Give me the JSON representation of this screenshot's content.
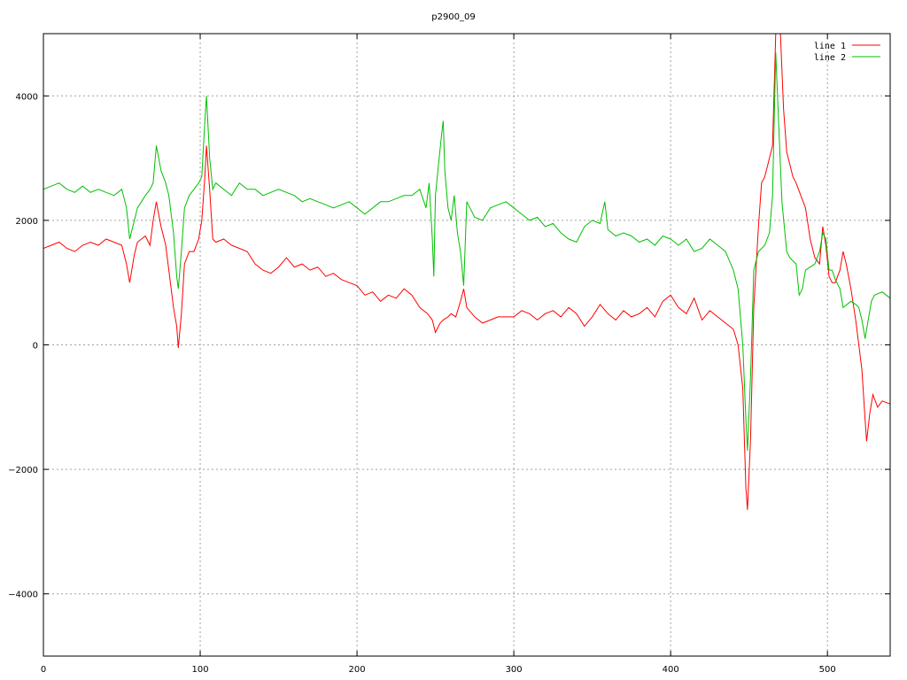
{
  "chart_data": {
    "type": "line",
    "title": "p2900_09",
    "xlim": [
      0,
      540
    ],
    "ylim": [
      -5000,
      5000
    ],
    "x_ticks": [
      0,
      100,
      200,
      300,
      400,
      500
    ],
    "y_ticks": [
      -4000,
      -2000,
      0,
      2000,
      4000
    ],
    "y_tick_labels": [
      "−4000",
      "−2000",
      "0",
      "2000",
      "4000"
    ],
    "grid": true,
    "legend_position": "top-right",
    "series": [
      {
        "name": "line 1",
        "color": "#ff0000",
        "points": [
          [
            0,
            1550
          ],
          [
            5,
            1600
          ],
          [
            10,
            1650
          ],
          [
            15,
            1550
          ],
          [
            20,
            1500
          ],
          [
            25,
            1600
          ],
          [
            30,
            1650
          ],
          [
            35,
            1600
          ],
          [
            40,
            1700
          ],
          [
            45,
            1650
          ],
          [
            50,
            1600
          ],
          [
            53,
            1300
          ],
          [
            55,
            1000
          ],
          [
            58,
            1450
          ],
          [
            60,
            1650
          ],
          [
            65,
            1750
          ],
          [
            68,
            1600
          ],
          [
            70,
            2000
          ],
          [
            72,
            2300
          ],
          [
            75,
            1900
          ],
          [
            78,
            1600
          ],
          [
            80,
            1200
          ],
          [
            83,
            600
          ],
          [
            85,
            300
          ],
          [
            86,
            -50
          ],
          [
            88,
            500
          ],
          [
            90,
            1300
          ],
          [
            93,
            1500
          ],
          [
            96,
            1500
          ],
          [
            99,
            1700
          ],
          [
            101,
            2000
          ],
          [
            103,
            2700
          ],
          [
            104,
            3200
          ],
          [
            106,
            2500
          ],
          [
            108,
            1700
          ],
          [
            110,
            1650
          ],
          [
            115,
            1700
          ],
          [
            120,
            1600
          ],
          [
            125,
            1550
          ],
          [
            130,
            1500
          ],
          [
            135,
            1300
          ],
          [
            140,
            1200
          ],
          [
            145,
            1150
          ],
          [
            150,
            1250
          ],
          [
            155,
            1400
          ],
          [
            160,
            1250
          ],
          [
            165,
            1300
          ],
          [
            170,
            1200
          ],
          [
            175,
            1250
          ],
          [
            180,
            1100
          ],
          [
            185,
            1150
          ],
          [
            190,
            1050
          ],
          [
            195,
            1000
          ],
          [
            200,
            950
          ],
          [
            205,
            800
          ],
          [
            210,
            850
          ],
          [
            215,
            700
          ],
          [
            220,
            800
          ],
          [
            225,
            750
          ],
          [
            230,
            900
          ],
          [
            235,
            800
          ],
          [
            240,
            600
          ],
          [
            245,
            500
          ],
          [
            248,
            400
          ],
          [
            250,
            200
          ],
          [
            253,
            350
          ],
          [
            255,
            400
          ],
          [
            258,
            450
          ],
          [
            260,
            500
          ],
          [
            263,
            450
          ],
          [
            266,
            700
          ],
          [
            268,
            900
          ],
          [
            270,
            600
          ],
          [
            275,
            450
          ],
          [
            280,
            350
          ],
          [
            285,
            400
          ],
          [
            290,
            450
          ],
          [
            295,
            450
          ],
          [
            300,
            450
          ],
          [
            305,
            550
          ],
          [
            310,
            500
          ],
          [
            315,
            400
          ],
          [
            320,
            500
          ],
          [
            325,
            550
          ],
          [
            330,
            450
          ],
          [
            335,
            600
          ],
          [
            340,
            500
          ],
          [
            345,
            300
          ],
          [
            350,
            450
          ],
          [
            355,
            650
          ],
          [
            360,
            500
          ],
          [
            365,
            400
          ],
          [
            370,
            550
          ],
          [
            375,
            450
          ],
          [
            380,
            500
          ],
          [
            385,
            600
          ],
          [
            390,
            450
          ],
          [
            395,
            700
          ],
          [
            400,
            800
          ],
          [
            405,
            600
          ],
          [
            410,
            500
          ],
          [
            415,
            750
          ],
          [
            420,
            400
          ],
          [
            425,
            550
          ],
          [
            430,
            450
          ],
          [
            435,
            350
          ],
          [
            440,
            250
          ],
          [
            443,
            0
          ],
          [
            446,
            -700
          ],
          [
            448,
            -2300
          ],
          [
            449,
            -2650
          ],
          [
            451,
            -1500
          ],
          [
            453,
            600
          ],
          [
            456,
            1900
          ],
          [
            458,
            2600
          ],
          [
            460,
            2700
          ],
          [
            463,
            3000
          ],
          [
            465,
            3200
          ],
          [
            467,
            5000
          ],
          [
            470,
            5000
          ],
          [
            472,
            3800
          ],
          [
            474,
            3100
          ],
          [
            476,
            2900
          ],
          [
            478,
            2700
          ],
          [
            480,
            2600
          ],
          [
            483,
            2400
          ],
          [
            486,
            2200
          ],
          [
            489,
            1700
          ],
          [
            492,
            1400
          ],
          [
            495,
            1300
          ],
          [
            497,
            1900
          ],
          [
            499,
            1600
          ],
          [
            501,
            1100
          ],
          [
            503,
            1000
          ],
          [
            505,
            1000
          ],
          [
            508,
            1200
          ],
          [
            510,
            1500
          ],
          [
            512,
            1300
          ],
          [
            515,
            900
          ],
          [
            518,
            400
          ],
          [
            520,
            0
          ],
          [
            522,
            -400
          ],
          [
            524,
            -1200
          ],
          [
            525,
            -1550
          ],
          [
            527,
            -1100
          ],
          [
            529,
            -800
          ],
          [
            532,
            -1000
          ],
          [
            535,
            -900
          ],
          [
            540,
            -950
          ]
        ]
      },
      {
        "name": "line 2",
        "color": "#00c000",
        "points": [
          [
            0,
            2500
          ],
          [
            5,
            2550
          ],
          [
            10,
            2600
          ],
          [
            15,
            2500
          ],
          [
            20,
            2450
          ],
          [
            25,
            2550
          ],
          [
            30,
            2450
          ],
          [
            35,
            2500
          ],
          [
            40,
            2450
          ],
          [
            45,
            2400
          ],
          [
            50,
            2500
          ],
          [
            53,
            2200
          ],
          [
            55,
            1700
          ],
          [
            58,
            2000
          ],
          [
            60,
            2200
          ],
          [
            65,
            2400
          ],
          [
            68,
            2500
          ],
          [
            70,
            2600
          ],
          [
            72,
            3200
          ],
          [
            75,
            2800
          ],
          [
            78,
            2600
          ],
          [
            80,
            2400
          ],
          [
            83,
            1800
          ],
          [
            85,
            1100
          ],
          [
            86,
            900
          ],
          [
            88,
            1500
          ],
          [
            90,
            2200
          ],
          [
            93,
            2400
          ],
          [
            96,
            2500
          ],
          [
            99,
            2600
          ],
          [
            101,
            2700
          ],
          [
            103,
            3600
          ],
          [
            104,
            4000
          ],
          [
            106,
            3000
          ],
          [
            108,
            2500
          ],
          [
            110,
            2600
          ],
          [
            115,
            2500
          ],
          [
            120,
            2400
          ],
          [
            125,
            2600
          ],
          [
            130,
            2500
          ],
          [
            135,
            2500
          ],
          [
            140,
            2400
          ],
          [
            145,
            2450
          ],
          [
            150,
            2500
          ],
          [
            155,
            2450
          ],
          [
            160,
            2400
          ],
          [
            165,
            2300
          ],
          [
            170,
            2350
          ],
          [
            175,
            2300
          ],
          [
            180,
            2250
          ],
          [
            185,
            2200
          ],
          [
            190,
            2250
          ],
          [
            195,
            2300
          ],
          [
            200,
            2200
          ],
          [
            205,
            2100
          ],
          [
            210,
            2200
          ],
          [
            215,
            2300
          ],
          [
            220,
            2300
          ],
          [
            225,
            2350
          ],
          [
            230,
            2400
          ],
          [
            235,
            2400
          ],
          [
            240,
            2500
          ],
          [
            244,
            2200
          ],
          [
            246,
            2600
          ],
          [
            248,
            1700
          ],
          [
            249,
            1100
          ],
          [
            250,
            2400
          ],
          [
            252,
            2900
          ],
          [
            254,
            3400
          ],
          [
            255,
            3600
          ],
          [
            256,
            2800
          ],
          [
            258,
            2200
          ],
          [
            260,
            2000
          ],
          [
            262,
            2400
          ],
          [
            264,
            1800
          ],
          [
            266,
            1500
          ],
          [
            268,
            950
          ],
          [
            270,
            2300
          ],
          [
            275,
            2050
          ],
          [
            280,
            2000
          ],
          [
            285,
            2200
          ],
          [
            290,
            2250
          ],
          [
            295,
            2300
          ],
          [
            300,
            2200
          ],
          [
            305,
            2100
          ],
          [
            310,
            2000
          ],
          [
            315,
            2050
          ],
          [
            320,
            1900
          ],
          [
            325,
            1950
          ],
          [
            330,
            1800
          ],
          [
            335,
            1700
          ],
          [
            340,
            1650
          ],
          [
            345,
            1900
          ],
          [
            350,
            2000
          ],
          [
            355,
            1950
          ],
          [
            358,
            2300
          ],
          [
            360,
            1850
          ],
          [
            365,
            1750
          ],
          [
            370,
            1800
          ],
          [
            375,
            1750
          ],
          [
            380,
            1650
          ],
          [
            385,
            1700
          ],
          [
            390,
            1600
          ],
          [
            395,
            1750
          ],
          [
            400,
            1700
          ],
          [
            405,
            1600
          ],
          [
            410,
            1700
          ],
          [
            415,
            1500
          ],
          [
            420,
            1550
          ],
          [
            425,
            1700
          ],
          [
            430,
            1600
          ],
          [
            435,
            1500
          ],
          [
            440,
            1200
          ],
          [
            443,
            900
          ],
          [
            446,
            0
          ],
          [
            448,
            -1200
          ],
          [
            449,
            -1700
          ],
          [
            451,
            -500
          ],
          [
            453,
            1200
          ],
          [
            456,
            1500
          ],
          [
            460,
            1600
          ],
          [
            463,
            1800
          ],
          [
            465,
            2400
          ],
          [
            467,
            4700
          ],
          [
            469,
            3500
          ],
          [
            471,
            2300
          ],
          [
            474,
            1500
          ],
          [
            476,
            1400
          ],
          [
            478,
            1350
          ],
          [
            480,
            1300
          ],
          [
            482,
            800
          ],
          [
            484,
            900
          ],
          [
            486,
            1200
          ],
          [
            489,
            1250
          ],
          [
            492,
            1300
          ],
          [
            495,
            1500
          ],
          [
            497,
            1800
          ],
          [
            499,
            1700
          ],
          [
            501,
            1200
          ],
          [
            503,
            1200
          ],
          [
            505,
            1050
          ],
          [
            508,
            900
          ],
          [
            510,
            600
          ],
          [
            515,
            700
          ],
          [
            518,
            650
          ],
          [
            520,
            600
          ],
          [
            522,
            400
          ],
          [
            524,
            100
          ],
          [
            526,
            400
          ],
          [
            528,
            700
          ],
          [
            530,
            800
          ],
          [
            535,
            850
          ],
          [
            540,
            750
          ]
        ]
      }
    ]
  }
}
